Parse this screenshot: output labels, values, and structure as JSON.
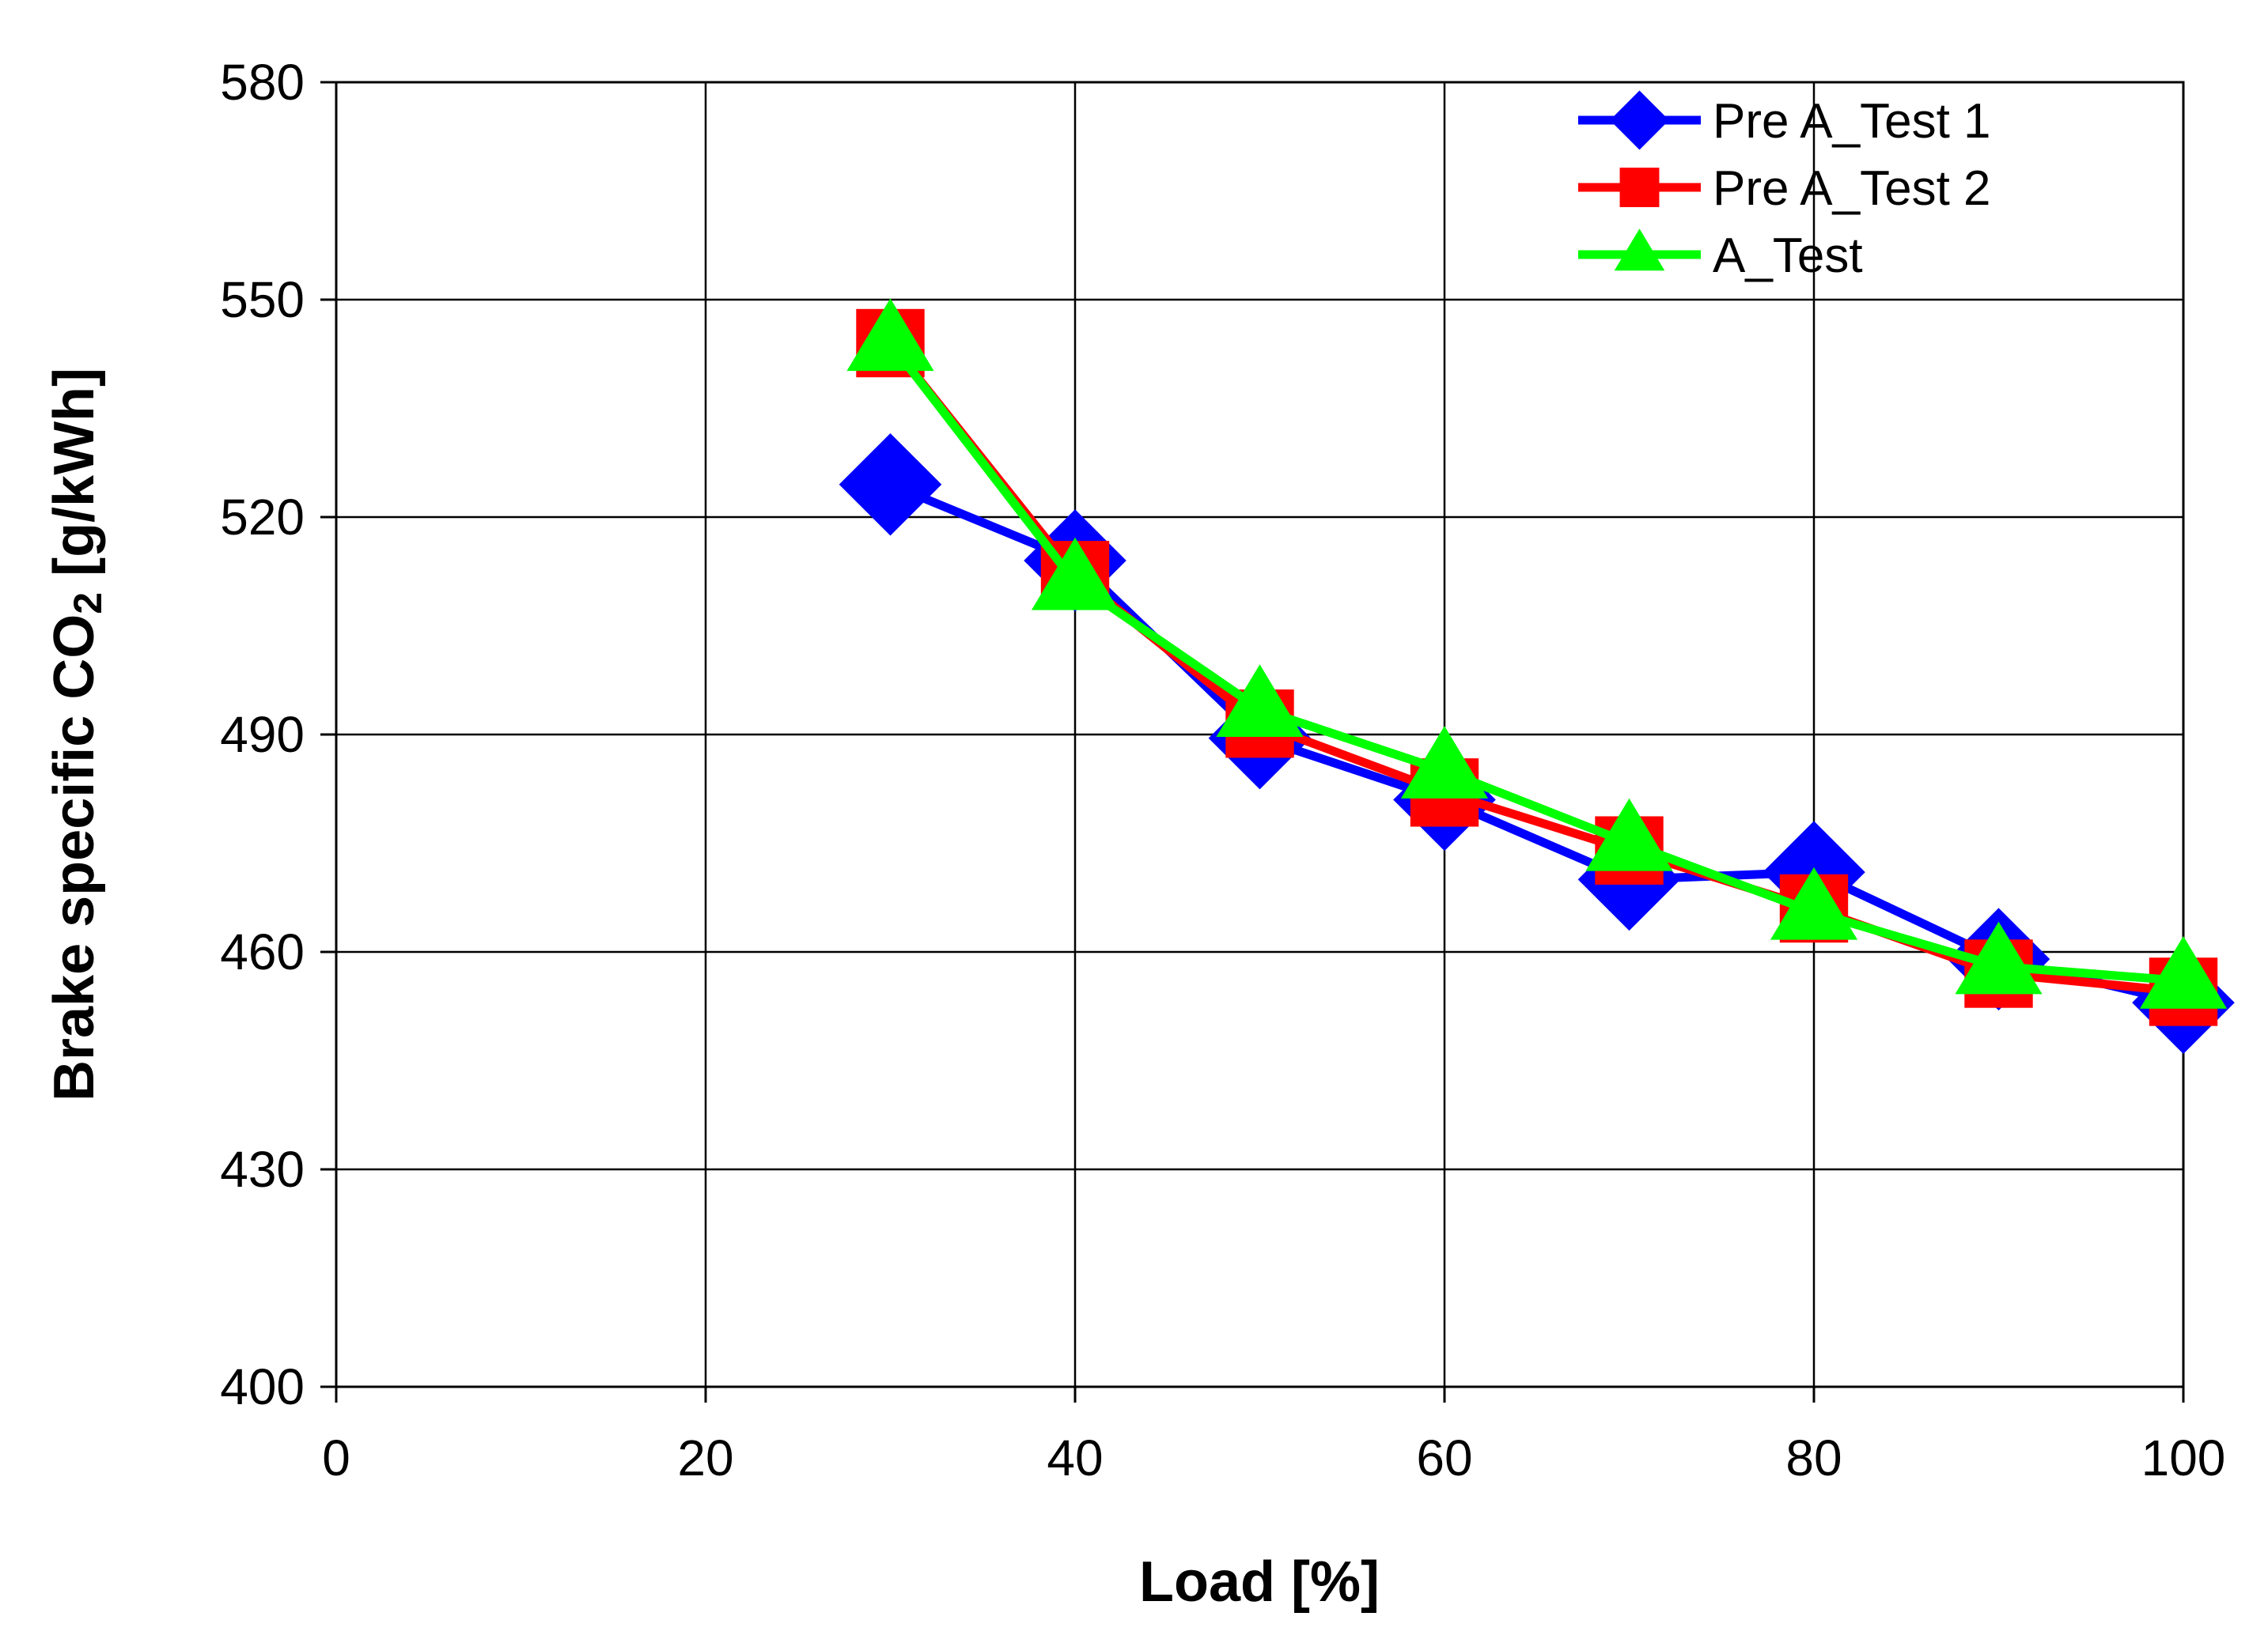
{
  "chart_data": {
    "type": "line",
    "title": "",
    "xlabel": "Load [%]",
    "ylabel_main": "Brake specific CO",
    "ylabel_sub": "2",
    "ylabel_unit": " [g/kWh]",
    "xlim": [
      0,
      100
    ],
    "ylim": [
      400,
      580
    ],
    "xticks": [
      0,
      20,
      40,
      60,
      80,
      100
    ],
    "yticks": [
      400,
      430,
      460,
      490,
      520,
      550,
      580
    ],
    "grid": true,
    "legend_position": "top-right",
    "x": [
      30,
      40,
      50,
      60,
      70,
      80,
      90,
      100
    ],
    "series": [
      {
        "name": "Pre A_Test 1",
        "color": "#0000ff",
        "marker": "diamond",
        "values": [
          524.5,
          514,
          489.5,
          481,
          470,
          471,
          459,
          453
        ]
      },
      {
        "name": "Pre A_Test 2",
        "color": "#ff0000",
        "marker": "square",
        "values": [
          544,
          512,
          491.5,
          482,
          474,
          466,
          457,
          454.5
        ]
      },
      {
        "name": "A_Test",
        "color": "#00ff00",
        "marker": "triangle",
        "values": [
          544,
          511,
          493.5,
          485,
          475,
          465.5,
          458,
          456
        ]
      }
    ]
  }
}
